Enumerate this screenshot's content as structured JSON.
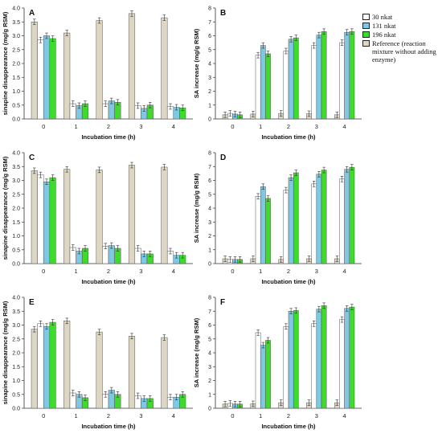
{
  "colors": {
    "30 nkat": "#ffffff",
    "131 nkat": "#7ec8e3",
    "196 nkat": "#3ddc2a",
    "reference": "#ddd6c3"
  },
  "legend": {
    "items": [
      {
        "key": "30 nkat",
        "label": "30 nkat"
      },
      {
        "key": "131 nkat",
        "label": "131 nkat"
      },
      {
        "key": "196 nkat",
        "label": "196 nkat"
      },
      {
        "key": "reference",
        "label": "Reference (reaction mixture without adding enzyme)"
      }
    ]
  },
  "chart_data": [
    {
      "type": "bar",
      "panel": "A",
      "ylabel": "sinapine disappearance (mg/g RSM)",
      "xlabel": "Incubation time (h)",
      "ylim": [
        0,
        4
      ],
      "yticks": [
        0,
        0.5,
        1,
        1.5,
        2,
        2.5,
        3,
        3.5,
        4
      ],
      "categories": [
        "0",
        "1",
        "2",
        "3",
        "4"
      ],
      "series": [
        {
          "key": "reference",
          "values": [
            3.5,
            3.1,
            3.55,
            3.8,
            3.65
          ]
        },
        {
          "key": "30 nkat",
          "values": [
            2.85,
            0.55,
            0.55,
            0.48,
            0.45
          ]
        },
        {
          "key": "131 nkat",
          "values": [
            3.0,
            0.48,
            0.65,
            0.38,
            0.42
          ]
        },
        {
          "key": "196 nkat",
          "values": [
            2.9,
            0.55,
            0.6,
            0.5,
            0.4
          ]
        }
      ]
    },
    {
      "type": "bar",
      "panel": "B",
      "ylabel": "SA increase (mg/g RSM)",
      "xlabel": "Incubation time (h)",
      "ylim": [
        0,
        8
      ],
      "yticks": [
        0,
        1,
        2,
        3,
        4,
        5,
        6,
        7,
        8
      ],
      "categories": [
        "0",
        "1",
        "2",
        "3",
        "4"
      ],
      "series": [
        {
          "key": "reference",
          "values": [
            0.3,
            0.35,
            0.4,
            0.38,
            0.3
          ]
        },
        {
          "key": "30 nkat",
          "values": [
            0.4,
            4.6,
            4.9,
            5.3,
            5.5
          ]
        },
        {
          "key": "131 nkat",
          "values": [
            0.35,
            5.3,
            5.75,
            6.05,
            6.25
          ]
        },
        {
          "key": "196 nkat",
          "values": [
            0.3,
            4.7,
            5.85,
            6.3,
            6.3
          ]
        }
      ]
    },
    {
      "type": "bar",
      "panel": "C",
      "ylabel": "sinapine disappearance (mg/g RSM)",
      "xlabel": "Incubation time (h)",
      "ylim": [
        0,
        4
      ],
      "yticks": [
        0,
        0.5,
        1,
        1.5,
        2,
        2.5,
        3,
        3.5,
        4
      ],
      "categories": [
        "0",
        "1",
        "2",
        "3",
        "4"
      ],
      "series": [
        {
          "key": "reference",
          "values": [
            3.35,
            3.4,
            3.38,
            3.55,
            3.48
          ]
        },
        {
          "key": "30 nkat",
          "values": [
            3.2,
            0.58,
            0.63,
            0.55,
            0.45
          ]
        },
        {
          "key": "131 nkat",
          "values": [
            2.95,
            0.45,
            0.65,
            0.35,
            0.3
          ]
        },
        {
          "key": "196 nkat",
          "values": [
            3.1,
            0.55,
            0.55,
            0.35,
            0.3
          ]
        }
      ]
    },
    {
      "type": "bar",
      "panel": "D",
      "ylabel": "SA increase (mg/g RSM)",
      "xlabel": "Incubation time (h)",
      "ylim": [
        0,
        8
      ],
      "yticks": [
        0,
        1,
        2,
        3,
        4,
        5,
        6,
        7,
        8
      ],
      "categories": [
        "0",
        "1",
        "2",
        "3",
        "4"
      ],
      "series": [
        {
          "key": "reference",
          "values": [
            0.35,
            0.35,
            0.3,
            0.35,
            0.35
          ]
        },
        {
          "key": "30 nkat",
          "values": [
            0.3,
            4.85,
            5.3,
            5.75,
            6.1
          ]
        },
        {
          "key": "131 nkat",
          "values": [
            0.3,
            5.55,
            6.2,
            6.45,
            6.8
          ]
        },
        {
          "key": "196 nkat",
          "values": [
            0.3,
            4.7,
            6.55,
            6.75,
            6.95
          ]
        }
      ]
    },
    {
      "type": "bar",
      "panel": "E",
      "ylabel": "sinapine disappearance (mg/g RSM)",
      "xlabel": "Incubation time (h)",
      "ylim": [
        0,
        4
      ],
      "yticks": [
        0,
        0.5,
        1,
        1.5,
        2,
        2.5,
        3,
        3.5,
        4
      ],
      "categories": [
        "0",
        "1",
        "2",
        "3",
        "4"
      ],
      "series": [
        {
          "key": "reference",
          "values": [
            2.85,
            3.15,
            2.75,
            2.6,
            2.55
          ]
        },
        {
          "key": "30 nkat",
          "values": [
            3.05,
            0.55,
            0.5,
            0.45,
            0.4
          ]
        },
        {
          "key": "131 nkat",
          "values": [
            2.95,
            0.5,
            0.65,
            0.35,
            0.4
          ]
        },
        {
          "key": "196 nkat",
          "values": [
            3.1,
            0.38,
            0.5,
            0.35,
            0.5
          ]
        }
      ]
    },
    {
      "type": "bar",
      "panel": "F",
      "ylabel": "SA increase (mg/g RSM)",
      "xlabel": "Incubation time (h)",
      "ylim": [
        0,
        8
      ],
      "yticks": [
        0,
        1,
        2,
        3,
        4,
        5,
        6,
        7,
        8
      ],
      "categories": [
        "0",
        "1",
        "2",
        "3",
        "4"
      ],
      "series": [
        {
          "key": "reference",
          "values": [
            0.3,
            0.32,
            0.4,
            0.4,
            0.4
          ]
        },
        {
          "key": "30 nkat",
          "values": [
            0.35,
            5.45,
            5.9,
            6.1,
            6.4
          ]
        },
        {
          "key": "131 nkat",
          "values": [
            0.3,
            4.55,
            7.0,
            7.15,
            7.2
          ]
        },
        {
          "key": "196 nkat",
          "values": [
            0.3,
            4.9,
            7.05,
            7.4,
            7.3
          ]
        }
      ]
    }
  ]
}
